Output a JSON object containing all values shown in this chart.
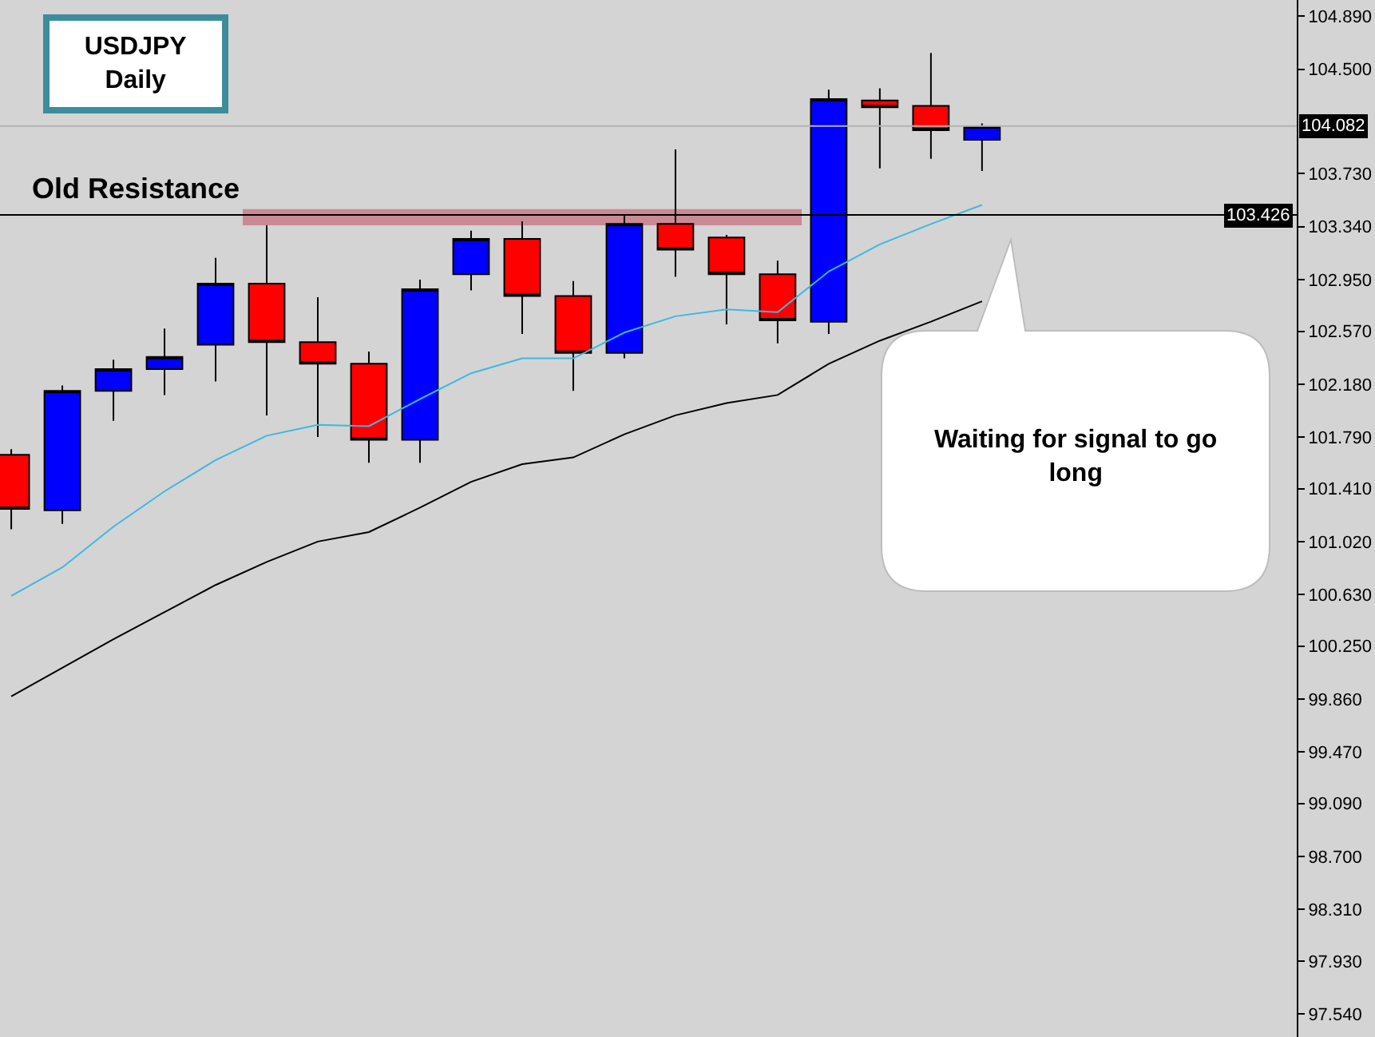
{
  "chart_data": {
    "type": "candlestick",
    "title": "USDJPY",
    "subtitle": "Daily",
    "categories": [
      null,
      null,
      null,
      null,
      null,
      null,
      null,
      null,
      null,
      null,
      null,
      null,
      null,
      null,
      null,
      null,
      null,
      null,
      null,
      null
    ],
    "ohlc": [
      [
        101.66,
        101.7,
        101.11,
        101.26
      ],
      [
        101.25,
        102.17,
        101.15,
        102.13
      ],
      [
        102.13,
        102.36,
        101.91,
        102.29
      ],
      [
        102.29,
        102.59,
        102.1,
        102.38
      ],
      [
        102.47,
        103.11,
        102.2,
        102.92
      ],
      [
        102.92,
        103.35,
        101.95,
        102.49
      ],
      [
        102.49,
        102.82,
        101.79,
        102.33
      ],
      [
        102.33,
        102.42,
        101.6,
        101.77
      ],
      [
        101.77,
        102.95,
        101.6,
        102.88
      ],
      [
        102.99,
        103.31,
        102.87,
        103.25
      ],
      [
        103.25,
        103.38,
        102.55,
        102.83
      ],
      [
        102.83,
        102.94,
        102.13,
        102.41
      ],
      [
        102.41,
        103.42,
        102.37,
        103.36
      ],
      [
        103.36,
        103.91,
        102.97,
        103.17
      ],
      [
        103.26,
        103.28,
        102.62,
        102.99
      ],
      [
        102.99,
        103.09,
        102.48,
        102.65
      ],
      [
        102.64,
        104.35,
        102.55,
        104.28
      ],
      [
        104.27,
        104.36,
        103.77,
        104.22
      ],
      [
        104.23,
        104.62,
        103.84,
        104.05
      ],
      [
        103.98,
        104.1,
        103.75,
        104.08
      ]
    ],
    "colors": [
      "#ff0000",
      "#0000ff",
      "#0000ff",
      "#0000ff",
      "#0000ff",
      "#ff0000",
      "#ff0000",
      "#ff0000",
      "#0000ff",
      "#0000ff",
      "#ff0000",
      "#ff0000",
      "#0000ff",
      "#ff0000",
      "#ff0000",
      "#ff0000",
      "#0000ff",
      "#ff0000",
      "#ff0000",
      "#0000ff"
    ],
    "series": [
      {
        "type": "line",
        "color": "#3cb9e0",
        "values": [
          100.62,
          100.83,
          101.13,
          101.39,
          101.62,
          101.8,
          101.88,
          101.87,
          102.07,
          102.26,
          102.37,
          102.37,
          102.56,
          102.68,
          102.73,
          102.71,
          103.01,
          103.21,
          103.36,
          103.5
        ]
      },
      {
        "type": "line",
        "color": "#000000",
        "values": [
          99.88,
          100.09,
          100.3,
          100.5,
          100.7,
          100.87,
          101.02,
          101.09,
          101.27,
          101.46,
          101.59,
          101.64,
          101.81,
          101.95,
          102.04,
          102.1,
          102.33,
          102.5,
          102.64,
          102.79
        ]
      }
    ],
    "ylim": [
      97.37,
      105.01
    ],
    "yticks": [
      {
        "value": 104.89,
        "label": "104.890"
      },
      {
        "value": 104.5,
        "label": "104.500"
      },
      {
        "value": 103.73,
        "label": "103.730"
      },
      {
        "value": 103.34,
        "label": "103.340"
      },
      {
        "value": 102.95,
        "label": "102.950"
      },
      {
        "value": 102.57,
        "label": "102.570"
      },
      {
        "value": 102.18,
        "label": "102.180"
      },
      {
        "value": 101.79,
        "label": "101.790"
      },
      {
        "value": 101.41,
        "label": "101.410"
      },
      {
        "value": 101.02,
        "label": "101.020"
      },
      {
        "value": 100.63,
        "label": "100.630"
      },
      {
        "value": 100.25,
        "label": "100.250"
      },
      {
        "value": 99.86,
        "label": "99.860"
      },
      {
        "value": 99.47,
        "label": "99.470"
      },
      {
        "value": 99.09,
        "label": "99.090"
      },
      {
        "value": 98.7,
        "label": "98.700"
      },
      {
        "value": 98.31,
        "label": "98.310"
      },
      {
        "value": 97.93,
        "label": "97.930"
      },
      {
        "value": 97.54,
        "label": "97.540"
      }
    ],
    "ref_lines": [
      {
        "axis": "y",
        "value": 103.426,
        "label": "103.426",
        "color": "#000000"
      },
      {
        "axis": "y",
        "value": 104.082,
        "label": "104.082",
        "color": "#b4b4b4"
      }
    ],
    "bands": [
      {
        "axis": "y",
        "from": 103.35,
        "to": 103.47,
        "label": "Old Resistance",
        "color": "#c98a96"
      }
    ],
    "annotations": [
      "Waiting for signal to go long"
    ],
    "tick_labels": "y"
  }
}
